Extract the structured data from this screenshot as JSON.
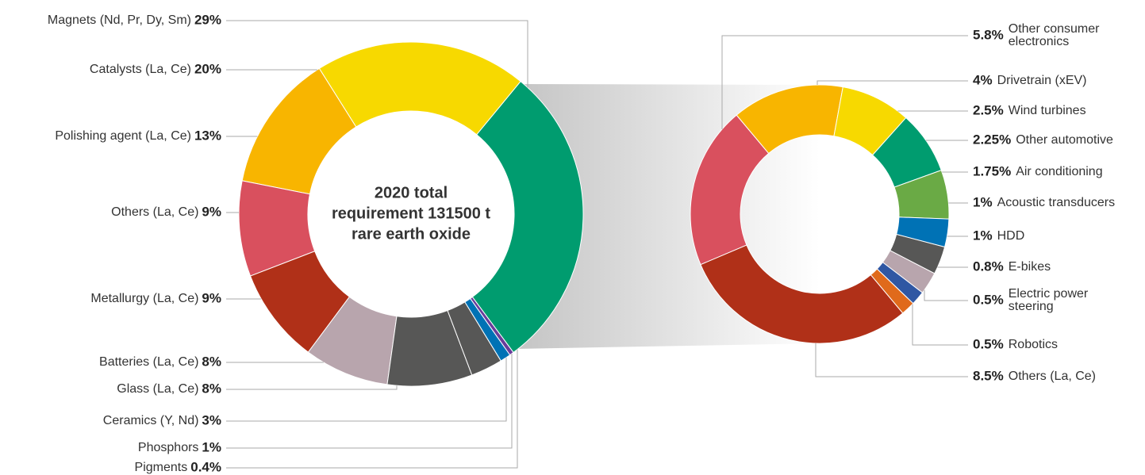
{
  "chart_data": [
    {
      "type": "donut",
      "center_label": [
        "2020 total",
        "requirement  131500 t",
        "rare earth oxide"
      ],
      "categories": [
        "Magnets (Nd, Pr, Dy, Sm)",
        "Catalysts (La, Ce)",
        "Polishing agent (La, Ce)",
        "Others (La, Ce)",
        "Metallurgy (La, Ce)",
        "Batteries (La, Ce)",
        "Glass (La, Ce)",
        "Ceramics (Y, Nd)",
        "Phosphors",
        "Pigments"
      ],
      "values": [
        29,
        20,
        13,
        9,
        9,
        8,
        8,
        3,
        1,
        0.4
      ],
      "value_labels": [
        "29%",
        "20%",
        "13%",
        "9%",
        "9%",
        "8%",
        "8%",
        "3%",
        "1%",
        "0.4%"
      ],
      "colors": [
        "#009c6f",
        "#f7d900",
        "#f8b500",
        "#d9505e",
        "#b03018",
        "#b8a5ad",
        "#575756",
        "#575756",
        "#0072b5",
        "#6a3d9a"
      ]
    },
    {
      "type": "donut",
      "categories": [
        "Other consumer electronics",
        "Drivetrain (xEV)",
        "Wind turbines",
        "Other automotive",
        "Air conditioning",
        "Acoustic transducers",
        "HDD",
        "E-bikes",
        "Electric power steering",
        "Robotics",
        "Others (La, Ce)"
      ],
      "values": [
        5.8,
        4,
        2.5,
        2.25,
        1.75,
        1,
        1,
        0.8,
        0.5,
        0.5,
        8.5
      ],
      "value_labels": [
        "5.8%",
        "4%",
        "2.5%",
        "2.25%",
        "1.75%",
        "1%",
        "1%",
        "0.8%",
        "0.5%",
        "0.5%",
        "8.5%"
      ],
      "colors": [
        "#d9505e",
        "#f8b500",
        "#f7d900",
        "#009c6f",
        "#6aaa45",
        "#0072b5",
        "#575756",
        "#b8a5ad",
        "#2f57a3",
        "#e06a1b",
        "#b03018"
      ]
    }
  ]
}
